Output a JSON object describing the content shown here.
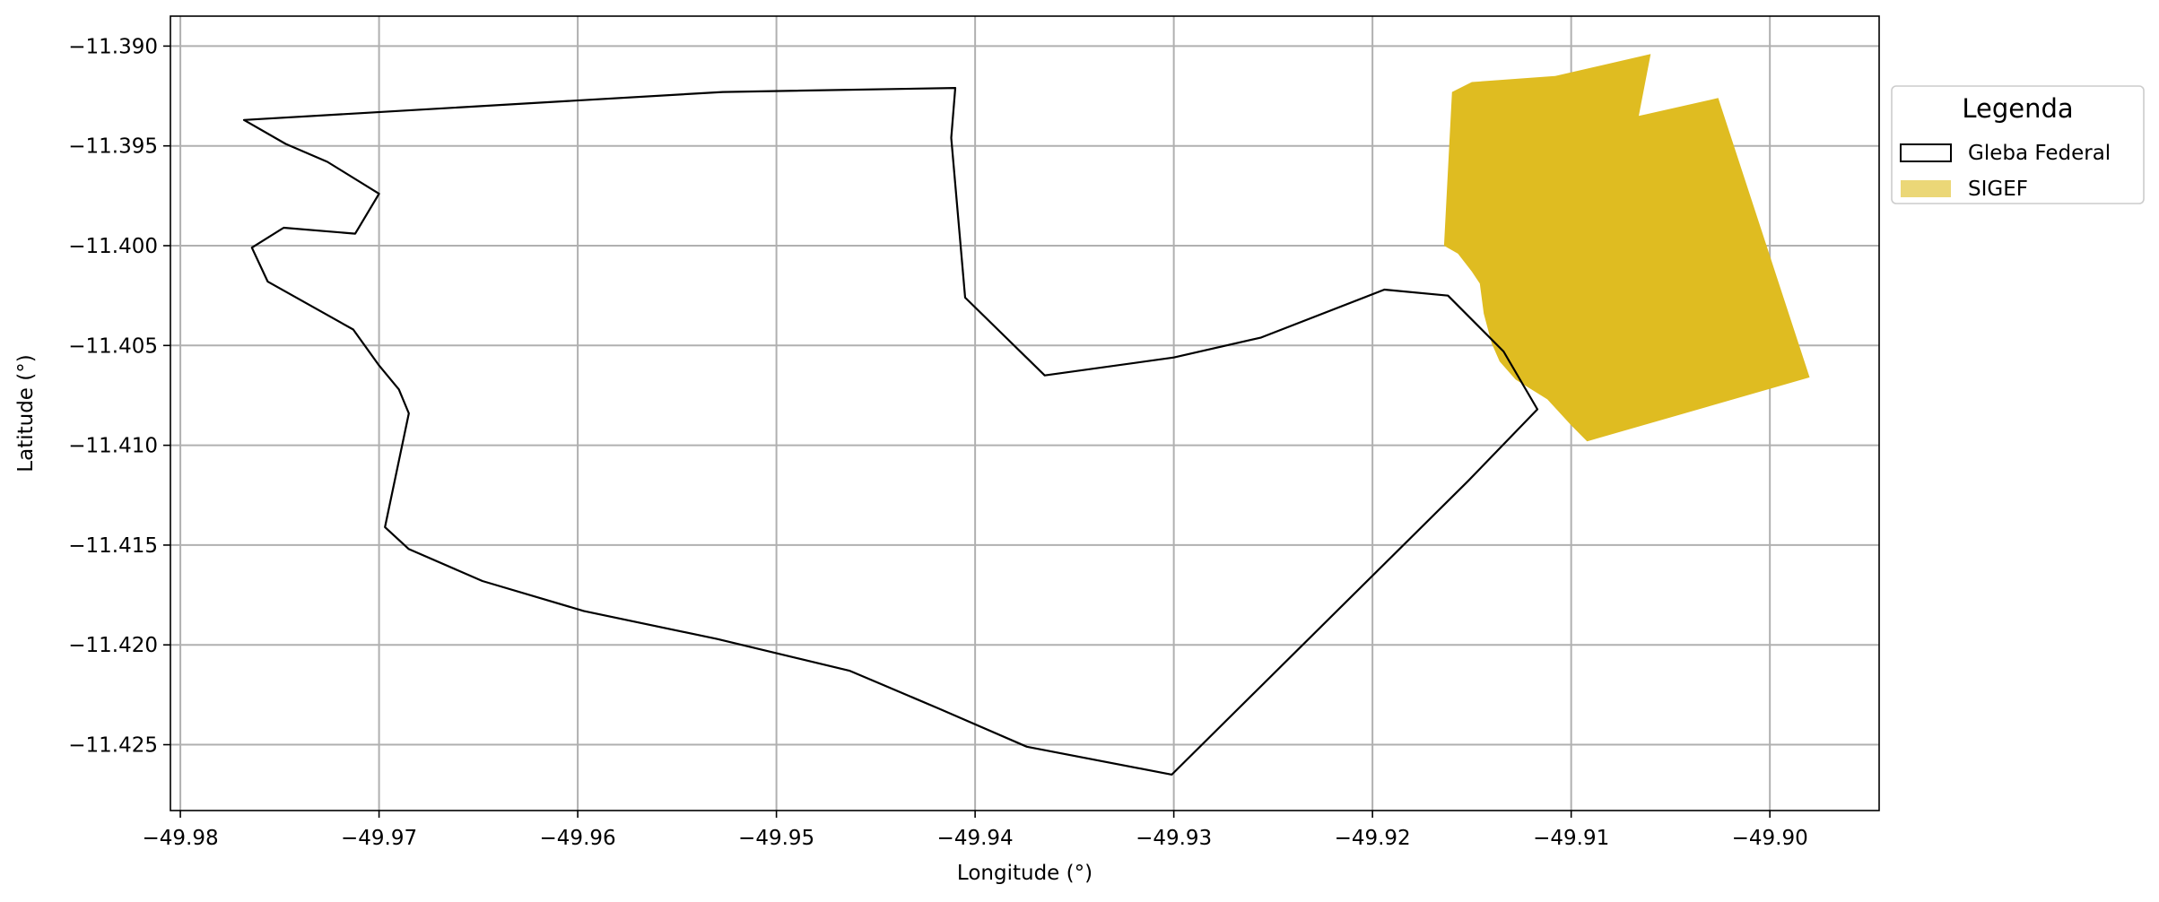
{
  "chart_data": {
    "type": "map",
    "xlabel": "Longitude (°)",
    "ylabel": "Latitude (°)",
    "xlim": [
      -49.9805,
      -49.8945
    ],
    "ylim": [
      -11.4283,
      -11.3885
    ],
    "grid": true,
    "x_ticks": [
      {
        "value": -49.98,
        "label": "−49.98"
      },
      {
        "value": -49.97,
        "label": "−49.97"
      },
      {
        "value": -49.96,
        "label": "−49.96"
      },
      {
        "value": -49.95,
        "label": "−49.95"
      },
      {
        "value": -49.94,
        "label": "−49.94"
      },
      {
        "value": -49.93,
        "label": "−49.93"
      },
      {
        "value": -49.92,
        "label": "−49.92"
      },
      {
        "value": -49.91,
        "label": "−49.91"
      },
      {
        "value": -49.9,
        "label": "−49.90"
      }
    ],
    "y_ticks": [
      {
        "value": -11.39,
        "label": "−11.390"
      },
      {
        "value": -11.395,
        "label": "−11.395"
      },
      {
        "value": -11.4,
        "label": "−11.400"
      },
      {
        "value": -11.405,
        "label": "−11.405"
      },
      {
        "value": -11.41,
        "label": "−11.410"
      },
      {
        "value": -11.415,
        "label": "−11.415"
      },
      {
        "value": -11.42,
        "label": "−11.420"
      },
      {
        "value": -11.425,
        "label": "−11.425"
      }
    ],
    "legend": {
      "title": "Legenda",
      "position": "outside-right-top",
      "items": [
        {
          "label": "Gleba Federal",
          "style": "outline",
          "color": "#000000"
        },
        {
          "label": "SIGEF",
          "style": "fill",
          "color": "#ebd777"
        }
      ]
    },
    "layers": [
      {
        "name": "Gleba Federal",
        "style": "outline",
        "stroke": "#000000",
        "coordinates": [
          [
            -49.9768,
            -11.3937
          ],
          [
            -49.9747,
            -11.3949
          ],
          [
            -49.9726,
            -11.3958
          ],
          [
            -49.97,
            -11.3974
          ],
          [
            -49.9712,
            -11.3994
          ],
          [
            -49.9748,
            -11.3991
          ],
          [
            -49.9764,
            -11.4001
          ],
          [
            -49.9756,
            -11.4018
          ],
          [
            -49.9713,
            -11.4042
          ],
          [
            -49.97,
            -11.406
          ],
          [
            -49.969,
            -11.4072
          ],
          [
            -49.9685,
            -11.4084
          ],
          [
            -49.9697,
            -11.4141
          ],
          [
            -49.9685,
            -11.4152
          ],
          [
            -49.9648,
            -11.4168
          ],
          [
            -49.9597,
            -11.4183
          ],
          [
            -49.953,
            -11.4197
          ],
          [
            -49.9463,
            -11.4213
          ],
          [
            -49.9418,
            -11.4232
          ],
          [
            -49.9374,
            -11.4251
          ],
          [
            -49.9301,
            -11.4265
          ],
          [
            -49.9152,
            -11.4118
          ],
          [
            -49.9117,
            -11.4082
          ],
          [
            -49.9134,
            -11.4053
          ],
          [
            -49.9162,
            -11.4025
          ],
          [
            -49.9194,
            -11.4022
          ],
          [
            -49.9256,
            -11.4046
          ],
          [
            -49.93,
            -11.4056
          ],
          [
            -49.9365,
            -11.4065
          ],
          [
            -49.9405,
            -11.4026
          ],
          [
            -49.9412,
            -11.3946
          ],
          [
            -49.941,
            -11.3921
          ],
          [
            -49.9527,
            -11.3923
          ],
          [
            -49.9768,
            -11.3937
          ]
        ]
      },
      {
        "name": "SIGEF",
        "style": "fill",
        "fill": "#dfbc21",
        "coordinates": [
          [
            -49.916,
            -11.3923
          ],
          [
            -49.915,
            -11.3918
          ],
          [
            -49.9108,
            -11.3915
          ],
          [
            -49.906,
            -11.3904
          ],
          [
            -49.9066,
            -11.3935
          ],
          [
            -49.9026,
            -11.3926
          ],
          [
            -49.898,
            -11.4066
          ],
          [
            -49.9092,
            -11.4098
          ],
          [
            -49.91,
            -11.409
          ],
          [
            -49.9112,
            -11.4077
          ],
          [
            -49.9128,
            -11.4067
          ],
          [
            -49.9136,
            -11.4058
          ],
          [
            -49.914,
            -11.4049
          ],
          [
            -49.9144,
            -11.4034
          ],
          [
            -49.9146,
            -11.4019
          ],
          [
            -49.915,
            -11.4013
          ],
          [
            -49.9157,
            -11.4004
          ],
          [
            -49.9164,
            -11.4
          ],
          [
            -49.916,
            -11.3923
          ]
        ]
      }
    ]
  }
}
